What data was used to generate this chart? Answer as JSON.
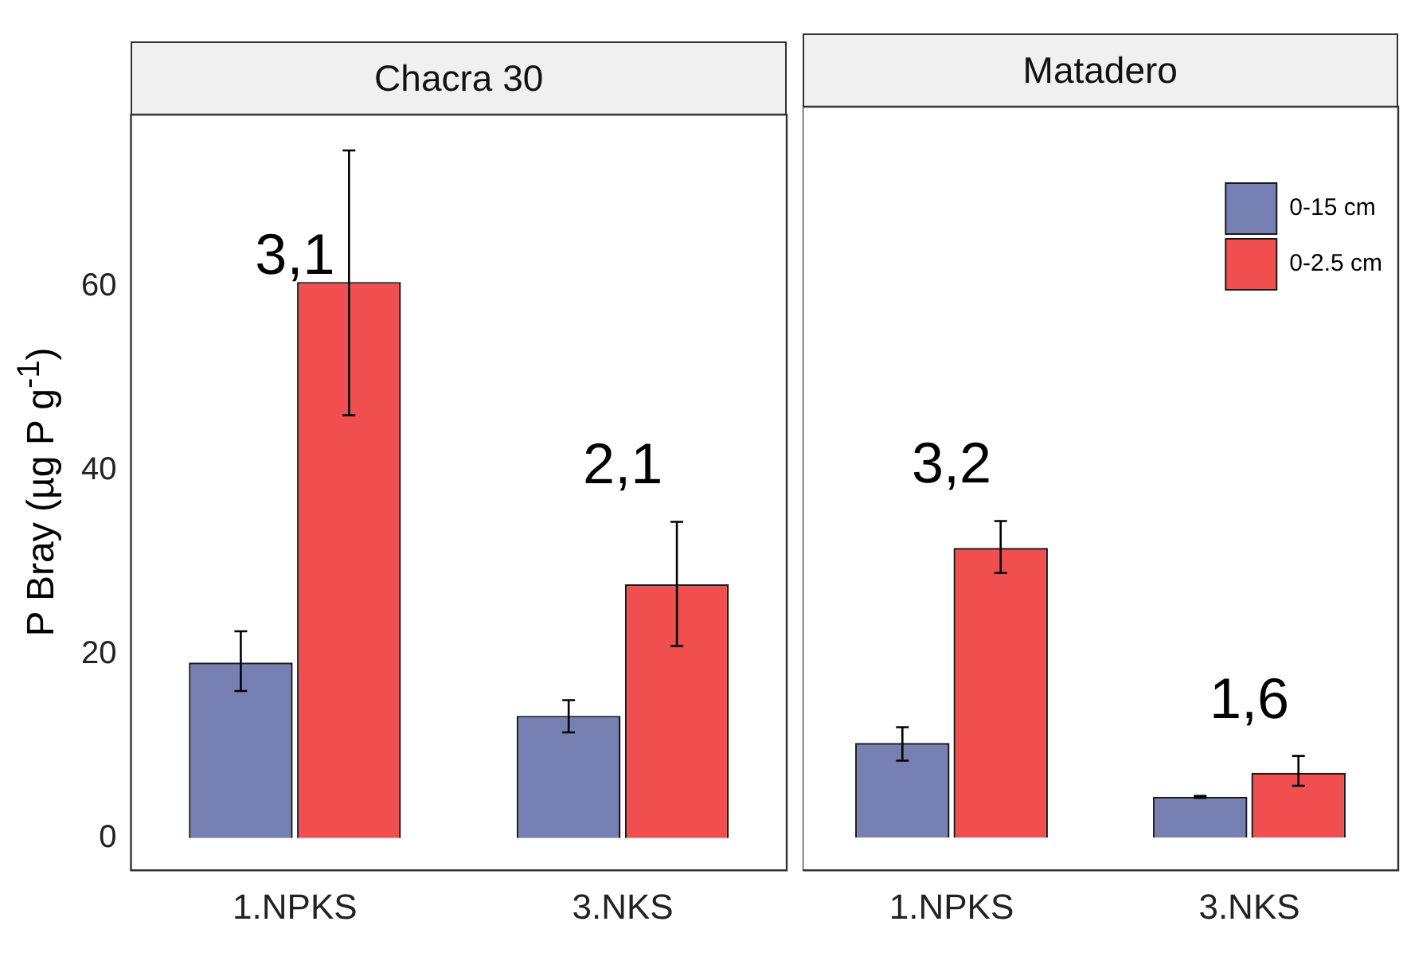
{
  "chart_data": [
    {
      "type": "bar",
      "title": "Chacra 30",
      "ylabel": "P Bray (µg P g$^{-1}$)",
      "categories": [
        "1.NPKS",
        "3.NKS"
      ],
      "ylim": [
        -3.5,
        78.7
      ],
      "yticks": [
        0,
        20,
        40,
        60
      ],
      "grid": false,
      "legend": false,
      "series": [
        {
          "color": "#7680b3",
          "values": [
            19.1,
            13.3
          ],
          "errors": [
            [
              16.0,
              22.5
            ],
            [
              11.5,
              15.0
            ]
          ]
        },
        {
          "color": "#f04e4f",
          "values": [
            60.5,
            27.6
          ],
          "errors": [
            [
              46.0,
              74.8
            ],
            [
              20.9,
              34.4
            ]
          ]
        }
      ],
      "annotations": [
        "3,1",
        "2,1"
      ]
    },
    {
      "type": "bar",
      "title": "Matadero",
      "categories": [
        "1.NPKS",
        "3.NKS"
      ],
      "ylim": [
        -3.5,
        78.7
      ],
      "yticks": [
        0,
        20,
        40,
        60
      ],
      "grid": false,
      "legend": "top right",
      "tick_labels": "x",
      "series": [
        {
          "name": "0-15 cm",
          "color": "#7680b3",
          "values": [
            10.2,
            4.4
          ],
          "errors": [
            [
              8.3,
              11.9
            ],
            [
              4.3,
              4.5
            ]
          ]
        },
        {
          "name": "0-2.5 cm",
          "color": "#f04e4f",
          "values": [
            31.2,
            7.0
          ],
          "errors": [
            [
              28.5,
              34.1
            ],
            [
              5.6,
              8.8
            ]
          ]
        }
      ],
      "annotations": [
        "3,2",
        "1,6"
      ]
    }
  ]
}
